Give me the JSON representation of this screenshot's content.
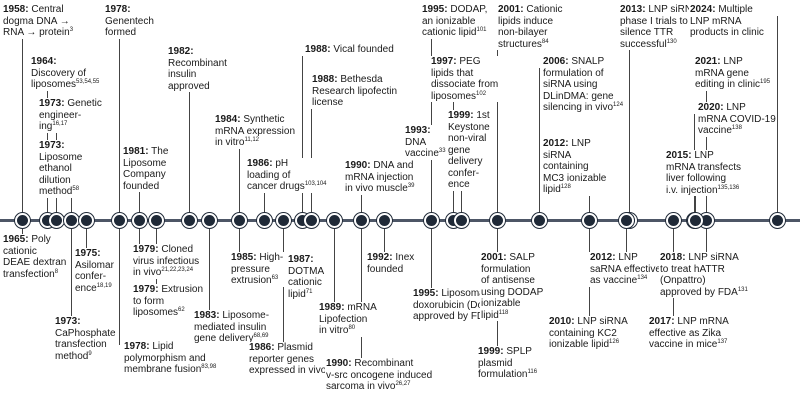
{
  "timeline": {
    "colors": {
      "axis": "#4d5666",
      "dot": "#1f2937",
      "leader": "#444444"
    },
    "events": [
      {
        "id": "e1958",
        "year": "1958:",
        "lines": [
          "{y} Central",
          "dogma DNA →",
          "RNA → protein"
        ],
        "refs": "3"
      },
      {
        "id": "e1964",
        "year": "1964:",
        "lines": [
          "{y}",
          "Discovery of",
          "liposomes"
        ],
        "refs": "53,54,55"
      },
      {
        "id": "e1973a",
        "year": "1973:",
        "lines": [
          "{y} Genetic",
          "engineer-",
          "ing"
        ],
        "refs": "16,17"
      },
      {
        "id": "e1973b",
        "year": "1973:",
        "lines": [
          "{y}",
          "Liposome",
          "ethanol",
          "dilution",
          "method"
        ],
        "refs": "58"
      },
      {
        "id": "e1978a",
        "year": "1978:",
        "lines": [
          "{y}",
          "Genentech",
          "formed"
        ],
        "refs": ""
      },
      {
        "id": "e1982",
        "year": "1982:",
        "lines": [
          "{y}",
          "Recombinant",
          "insulin",
          "approved"
        ],
        "refs": ""
      },
      {
        "id": "e1981",
        "year": "1981:",
        "lines": [
          "{y} The",
          "Liposome",
          "Company",
          "founded"
        ],
        "refs": ""
      },
      {
        "id": "e1984",
        "year": "1984:",
        "lines": [
          "{y} Synthetic",
          "mRNA expression",
          "in vitro"
        ],
        "refs": "11,12"
      },
      {
        "id": "e1986a",
        "year": "1986:",
        "lines": [
          "{y} pH",
          "loading of",
          "cancer drugs"
        ],
        "refs": "103,104"
      },
      {
        "id": "e1988a",
        "year": "1988:",
        "lines": [
          "{y} Vical founded"
        ],
        "refs": ""
      },
      {
        "id": "e1988b",
        "year": "1988:",
        "lines": [
          "{y} Bethesda",
          "Research lipofectin",
          "license"
        ],
        "refs": ""
      },
      {
        "id": "e1990a",
        "year": "1990:",
        "lines": [
          "{y} DNA and",
          "mRNA injection",
          "in vivo muscle"
        ],
        "refs": "39"
      },
      {
        "id": "e1993",
        "year": "1993:",
        "lines": [
          "{y}",
          "DNA",
          "vaccine"
        ],
        "refs": "33"
      },
      {
        "id": "e1995a",
        "year": "1995:",
        "lines": [
          "{y} DODAP,",
          "an ionizable",
          "cationic lipid"
        ],
        "refs": "101"
      },
      {
        "id": "e1997",
        "year": "1997:",
        "lines": [
          "{y} PEG",
          "lipids that",
          "dissociate from",
          "liposomes"
        ],
        "refs": "102"
      },
      {
        "id": "e1999a",
        "year": "1999:",
        "lines": [
          "{y} 1st",
          "Keystone",
          "non-viral",
          "gene",
          "delivery",
          "confer-",
          "ence"
        ],
        "refs": ""
      },
      {
        "id": "e2001a",
        "year": "2001:",
        "lines": [
          "{y} Cationic",
          "lipids induce",
          "non-bilayer",
          "structures"
        ],
        "refs": "84"
      },
      {
        "id": "e2006",
        "year": "2006:",
        "lines": [
          "{y} SNALP",
          "formulation of",
          "siRNA using",
          "DLinDMA: gene",
          "silencing in vivo"
        ],
        "refs": "124"
      },
      {
        "id": "e2012a",
        "year": "2012:",
        "lines": [
          "{y} LNP",
          "siRNA",
          "containing",
          "MC3 ionizable",
          "lipid"
        ],
        "refs": "128"
      },
      {
        "id": "e2013",
        "year": "2013:",
        "lines": [
          "{y} LNP siRNA",
          "phase I trials to",
          "silence TTR",
          "successful"
        ],
        "refs": "130"
      },
      {
        "id": "e2024",
        "year": "2024:",
        "lines": [
          "{y} Multiple",
          "LNP mRNA",
          "products in clinic"
        ],
        "refs": ""
      },
      {
        "id": "e2021",
        "year": "2021:",
        "lines": [
          "{y} LNP",
          "mRNA gene",
          "editing in clinic"
        ],
        "refs": "195"
      },
      {
        "id": "e2020",
        "year": "2020:",
        "lines": [
          "{y} LNP",
          "mRNA COVID-19",
          "vaccine"
        ],
        "refs": "138"
      },
      {
        "id": "e2015",
        "year": "2015:",
        "lines": [
          "{y} LNP",
          "mRNA transfects",
          "liver following",
          "i.v. injection"
        ],
        "refs": "135,136"
      },
      {
        "id": "e1965",
        "year": "1965:",
        "lines": [
          "{y} Poly",
          "cationic",
          "DEAE dextran",
          "transfection"
        ],
        "refs": "8"
      },
      {
        "id": "e1975",
        "year": "1975:",
        "lines": [
          "{y}",
          "Asilomar",
          "confer-",
          "ence"
        ],
        "refs": "18,19"
      },
      {
        "id": "e1973c",
        "year": "1973:",
        "lines": [
          "{y}",
          "CaPhosphate",
          "transfection",
          "method"
        ],
        "refs": "9"
      },
      {
        "id": "e1978b",
        "year": "1978:",
        "lines": [
          "{y} Lipid",
          "polymorphism and",
          "membrane fusion"
        ],
        "refs": "83,98"
      },
      {
        "id": "e1979a",
        "year": "1979:",
        "lines": [
          "{y} Cloned",
          "virus infectious",
          "in vivo"
        ],
        "refs": "21,22,23,24"
      },
      {
        "id": "e1979b",
        "year": "1979:",
        "lines": [
          "{y} Extrusion",
          "to form",
          "liposomes"
        ],
        "refs": "62"
      },
      {
        "id": "e1983",
        "year": "1983:",
        "lines": [
          "{y} Liposome-",
          "mediated insulin",
          "gene delivery"
        ],
        "refs": "68,69"
      },
      {
        "id": "e1985",
        "year": "1985:",
        "lines": [
          "{y} High-",
          "pressure",
          "extrusion"
        ],
        "refs": "63"
      },
      {
        "id": "e1986b",
        "year": "1986:",
        "lines": [
          "{y} Plasmid",
          "reporter genes",
          "expressed in vivo"
        ],
        "refs": "25"
      },
      {
        "id": "e1987",
        "year": "1987:",
        "lines": [
          "{y}",
          "DOTMA",
          "cationic",
          "lipid"
        ],
        "refs": "71"
      },
      {
        "id": "e1989",
        "year": "1989:",
        "lines": [
          "{y} mRNA",
          "Lipofection",
          "in vitro"
        ],
        "refs": "80"
      },
      {
        "id": "e1990b",
        "year": "1990:",
        "lines": [
          "{y} Recombinant",
          "v-src oncogene induced",
          "sarcoma in vivo"
        ],
        "refs": "26,27"
      },
      {
        "id": "e1992",
        "year": "1992:",
        "lines": [
          "{y} Inex",
          "founded"
        ],
        "refs": ""
      },
      {
        "id": "e1995b",
        "year": "1995:",
        "lines": [
          "{y} Liposomal",
          "doxorubicin (Doxil)",
          "approved by FDA"
        ],
        "refs": ""
      },
      {
        "id": "e1999b",
        "year": "1999:",
        "lines": [
          "{y} SPLP",
          "plasmid",
          "formulation"
        ],
        "refs": "116"
      },
      {
        "id": "e2001b",
        "year": "2001:",
        "lines": [
          "{y} SALP",
          "formulation",
          "of antisense",
          "using DODAP",
          "ionizable",
          "lipid"
        ],
        "refs": "118"
      },
      {
        "id": "e2010",
        "year": "2010:",
        "lines": [
          "{y} LNP siRNA",
          "containing KC2",
          "ionizable lipid"
        ],
        "refs": "126"
      },
      {
        "id": "e2012b",
        "year": "2012:",
        "lines": [
          "{y} LNP",
          "saRNA effective",
          "as vaccine"
        ],
        "refs": "134"
      },
      {
        "id": "e2017",
        "year": "2017:",
        "lines": [
          "{y} LNP mRNA",
          "effective as Zika",
          "vaccine in mice"
        ],
        "refs": "137"
      },
      {
        "id": "e2018",
        "year": "2018:",
        "lines": [
          "{y} LNP siRNA",
          "to treat hATTR",
          "(Onpattro)",
          "approved by FDA"
        ],
        "refs": "131"
      }
    ]
  }
}
